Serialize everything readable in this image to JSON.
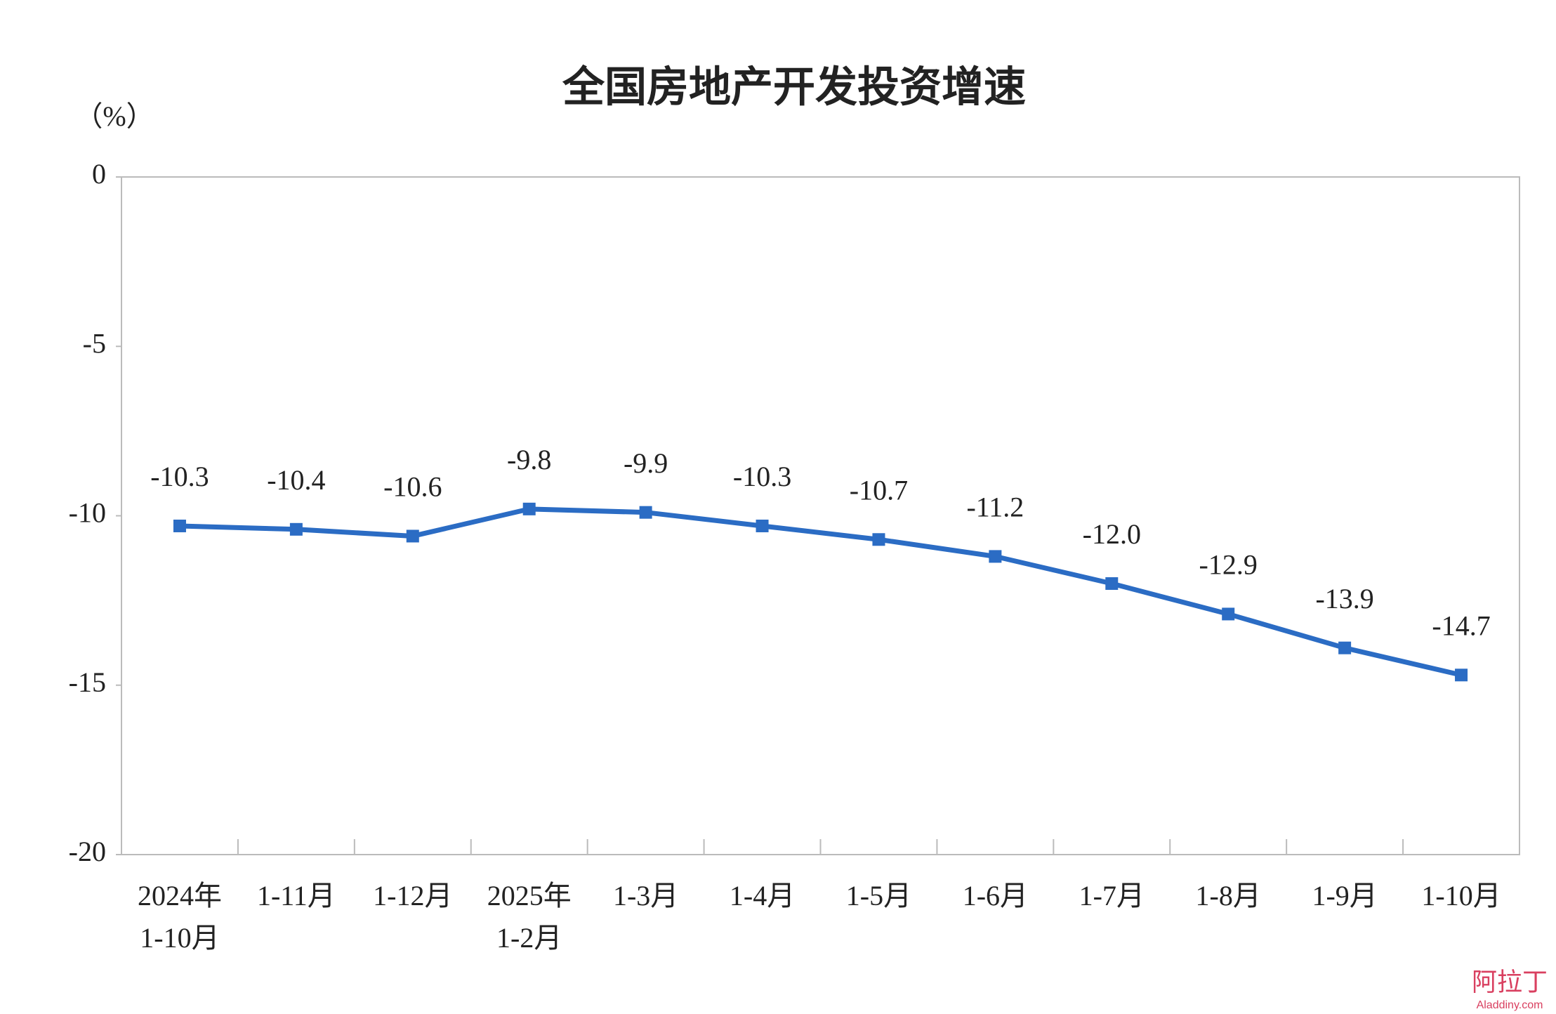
{
  "chart_data": {
    "type": "line",
    "title": "全国房地产开发投资增速",
    "y_label": "（%）",
    "categories": [
      [
        "2024年",
        "1-10月"
      ],
      "1-11月",
      "1-12月",
      [
        "2025年",
        "1-2月"
      ],
      "1-3月",
      "1-4月",
      "1-5月",
      "1-6月",
      "1-7月",
      "1-8月",
      "1-9月",
      "1-10月"
    ],
    "series": [
      {
        "name": "全国房地产开发投资增速",
        "color": "#2b6cc4",
        "values": [
          -10.3,
          -10.4,
          -10.6,
          -9.8,
          -9.9,
          -10.3,
          -10.7,
          -11.2,
          -12.0,
          -12.9,
          -13.9,
          -14.7
        ],
        "value_labels": [
          "-10.3",
          "-10.4",
          "-10.6",
          "-9.8",
          "-9.9",
          "-10.3",
          "-10.7",
          "-11.2",
          "-12.0",
          "-12.9",
          "-13.9",
          "-14.7"
        ]
      }
    ],
    "ylim": [
      -20,
      0
    ],
    "yticks": [
      0,
      -5,
      -10,
      -15,
      -20
    ],
    "grid": false,
    "watermark": {
      "text": "阿拉丁",
      "url": "Aladdiny.com"
    }
  }
}
